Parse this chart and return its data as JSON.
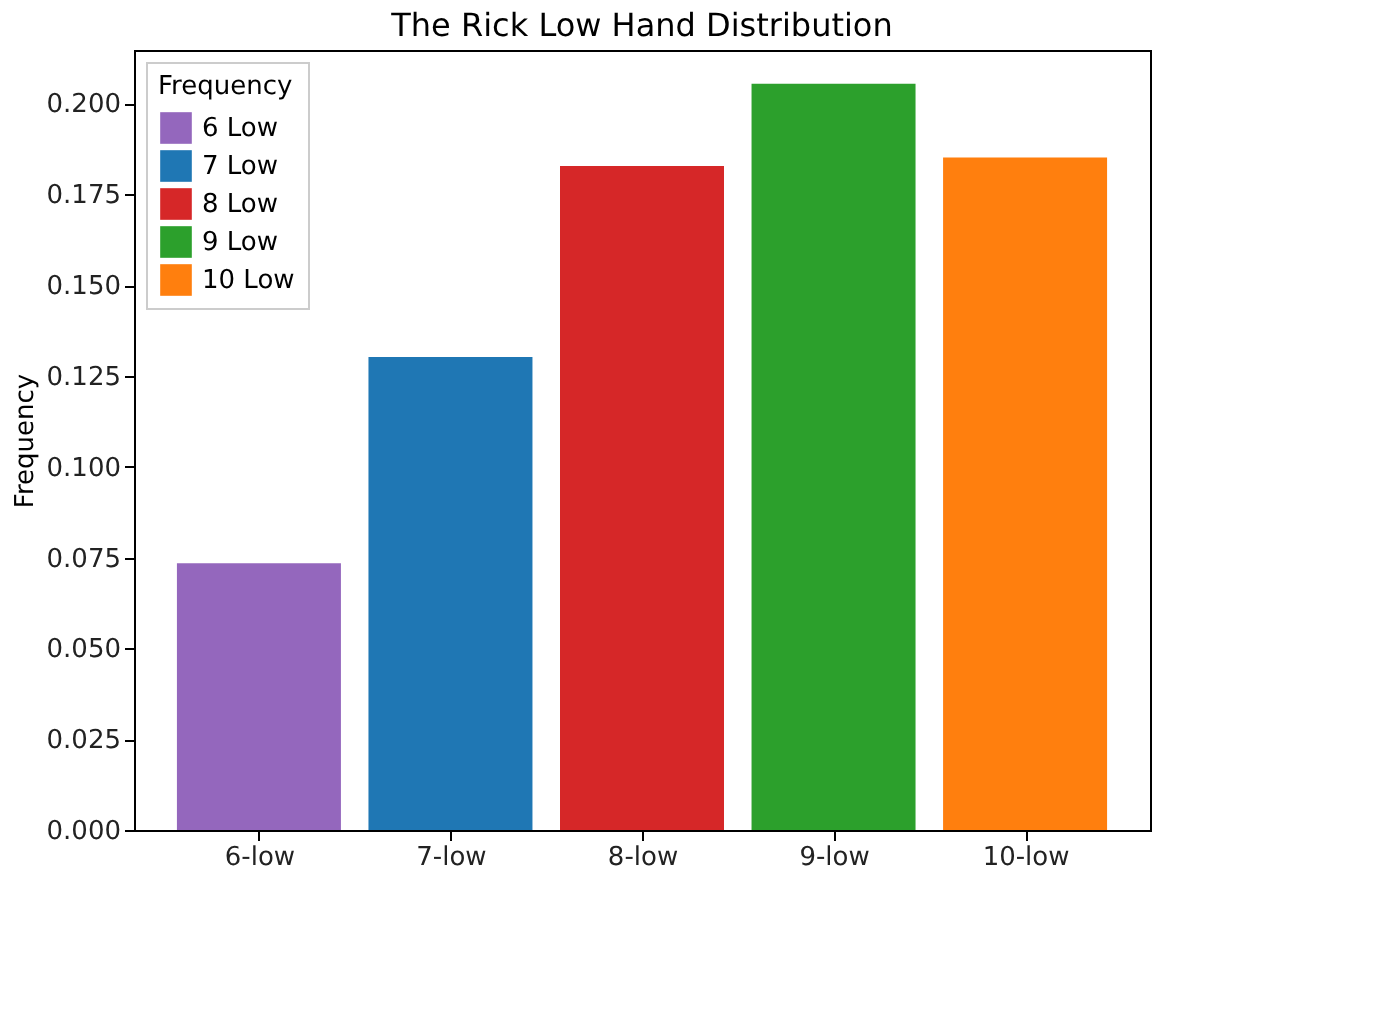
{
  "chart_data": {
    "type": "bar",
    "title": "The Rick Low Hand Distribution",
    "ylabel": "Frequency",
    "legend_title": "Frequency",
    "categories": [
      "6-low",
      "7-low",
      "8-low",
      "9-low",
      "10-low"
    ],
    "series": [
      {
        "name": "6 Low",
        "color": "#9467bd",
        "values": [
          0.0734,
          null,
          null,
          null,
          null
        ]
      },
      {
        "name": "7 Low",
        "color": "#1f77b4",
        "values": [
          null,
          0.1302,
          null,
          null,
          null
        ]
      },
      {
        "name": "8 Low",
        "color": "#d62728",
        "values": [
          null,
          null,
          0.1828,
          null,
          null
        ]
      },
      {
        "name": "9 Low",
        "color": "#2ca02c",
        "values": [
          null,
          null,
          null,
          0.2054,
          null
        ]
      },
      {
        "name": "10 Low",
        "color": "#ff7f0e",
        "values": [
          null,
          null,
          null,
          null,
          0.1851
        ]
      }
    ],
    "ylim": [
      0,
      0.2147
    ],
    "yticks": [
      {
        "value": 0,
        "label": "0.000"
      },
      0.025,
      {
        "value": 0.05,
        "label": "0.050"
      },
      0.075,
      {
        "value": 0.1,
        "label": "0.100"
      },
      0.125,
      {
        "value": 0.15,
        "label": "0.150"
      },
      0.175,
      {
        "value": 0.2,
        "label": "0.200"
      }
    ],
    "grid": false,
    "legend": "top left"
  }
}
